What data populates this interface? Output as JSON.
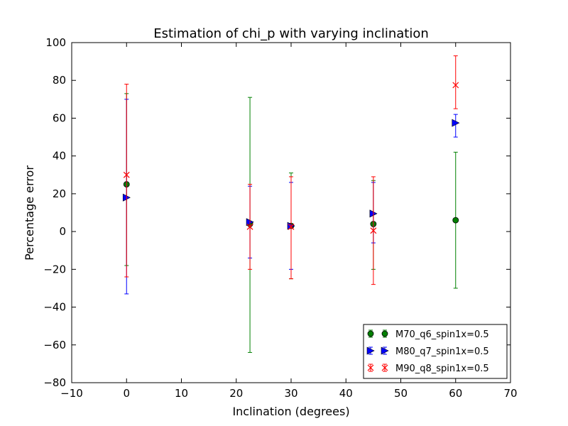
{
  "chart_data": {
    "type": "scatter",
    "title": "Estimation of chi_p with varying inclination",
    "xlabel": "Inclination (degrees)",
    "ylabel": "Percentage error",
    "xlim": [
      -10,
      70
    ],
    "ylim": [
      -80,
      100
    ],
    "xticks": [
      -10,
      0,
      10,
      20,
      30,
      40,
      50,
      60,
      70
    ],
    "yticks": [
      -80,
      -60,
      -40,
      -20,
      0,
      20,
      40,
      60,
      80,
      100
    ],
    "grid": false,
    "legend_position": "lower-right",
    "series": [
      {
        "name": "M70_q6_spin1x=0.5",
        "color": "#008000",
        "marker": "circle",
        "points": [
          {
            "x": 0,
            "y": 25,
            "err_low": -18,
            "err_high": 73
          },
          {
            "x": 22.5,
            "y": 4,
            "err_low": -64,
            "err_high": 71
          },
          {
            "x": 30,
            "y": 3,
            "err_low": -25,
            "err_high": 31
          },
          {
            "x": 45,
            "y": 4,
            "err_low": -20,
            "err_high": 27
          },
          {
            "x": 60,
            "y": 6,
            "err_low": -30,
            "err_high": 42
          }
        ]
      },
      {
        "name": "M80_q7_spin1x=0.5",
        "color": "#0000ff",
        "marker": "triangle-right",
        "points": [
          {
            "x": 0,
            "y": 18,
            "err_low": -33,
            "err_high": 70
          },
          {
            "x": 22.5,
            "y": 5,
            "err_low": -14,
            "err_high": 24
          },
          {
            "x": 30,
            "y": 3,
            "err_low": -20,
            "err_high": 26
          },
          {
            "x": 45,
            "y": 9.5,
            "err_low": -6,
            "err_high": 26
          },
          {
            "x": 60,
            "y": 57.5,
            "err_low": 50,
            "err_high": 62
          }
        ]
      },
      {
        "name": "M90_q8_spin1x=0.5",
        "color": "#ff0000",
        "marker": "x",
        "points": [
          {
            "x": 0,
            "y": 30,
            "err_low": -24,
            "err_high": 78
          },
          {
            "x": 22.5,
            "y": 2.5,
            "err_low": -20,
            "err_high": 25
          },
          {
            "x": 30,
            "y": 2.5,
            "err_low": -25,
            "err_high": 29
          },
          {
            "x": 45,
            "y": 0.5,
            "err_low": -28,
            "err_high": 29
          },
          {
            "x": 60,
            "y": 77.5,
            "err_low": 65,
            "err_high": 93
          }
        ]
      }
    ]
  }
}
